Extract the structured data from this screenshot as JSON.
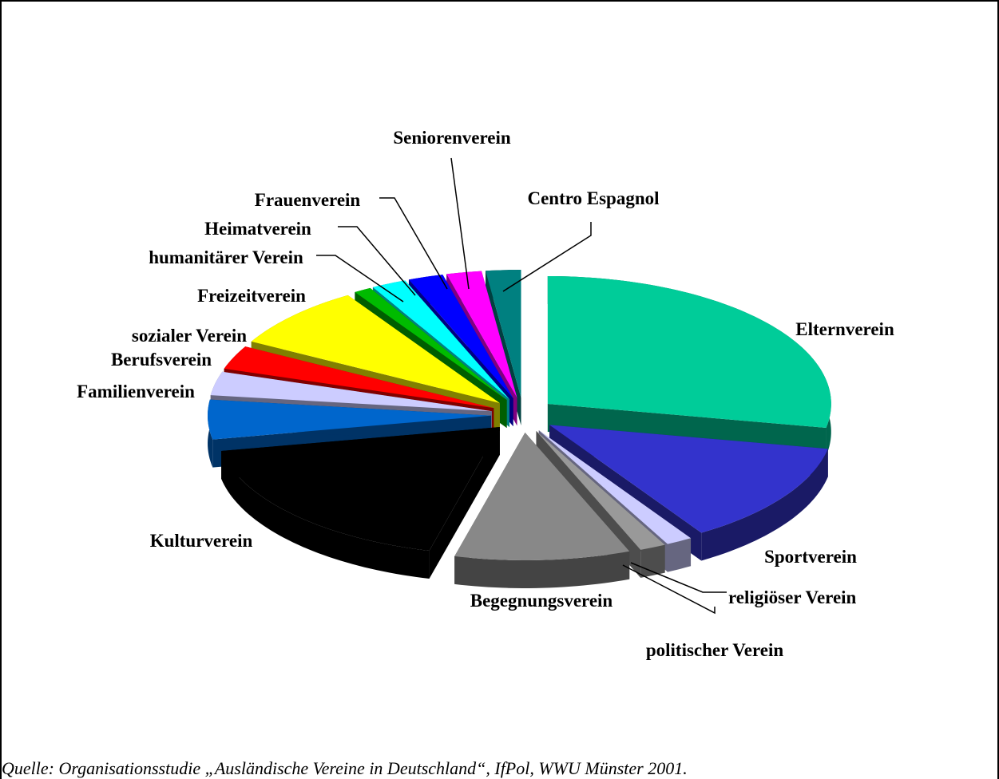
{
  "chart_data": {
    "type": "pie3d",
    "categories": [
      "Elternverein",
      "Sportverein",
      "religiöser Verein",
      "politischer Verein",
      "Begegnungsverein",
      "Kulturverein",
      "Familienverein",
      "Berufsverein",
      "sozialer Verein",
      "Freizeitverein",
      "humanitärer Verein",
      "Heimatverein",
      "Frauenverein",
      "Seniorenverein",
      "Centro Espagnol"
    ],
    "values": [
      28,
      13,
      1.5,
      1.5,
      10,
      18,
      5,
      3,
      3,
      8,
      1,
      2,
      2,
      2,
      2
    ],
    "colors": [
      "#00cc99",
      "#3333cc",
      "#ccccff",
      "#999999",
      "#888888",
      "#000000",
      "#0066cc",
      "#ccccff",
      "#ff0000",
      "#ffff00",
      "#00bb00",
      "#00ffff",
      "#0000ff",
      "#ff00ff",
      "#008080"
    ],
    "source": "Quelle: Organisationsstudie „Ausländische Vereine in Deutschland“, IfPol, WWU Münster 2001."
  }
}
